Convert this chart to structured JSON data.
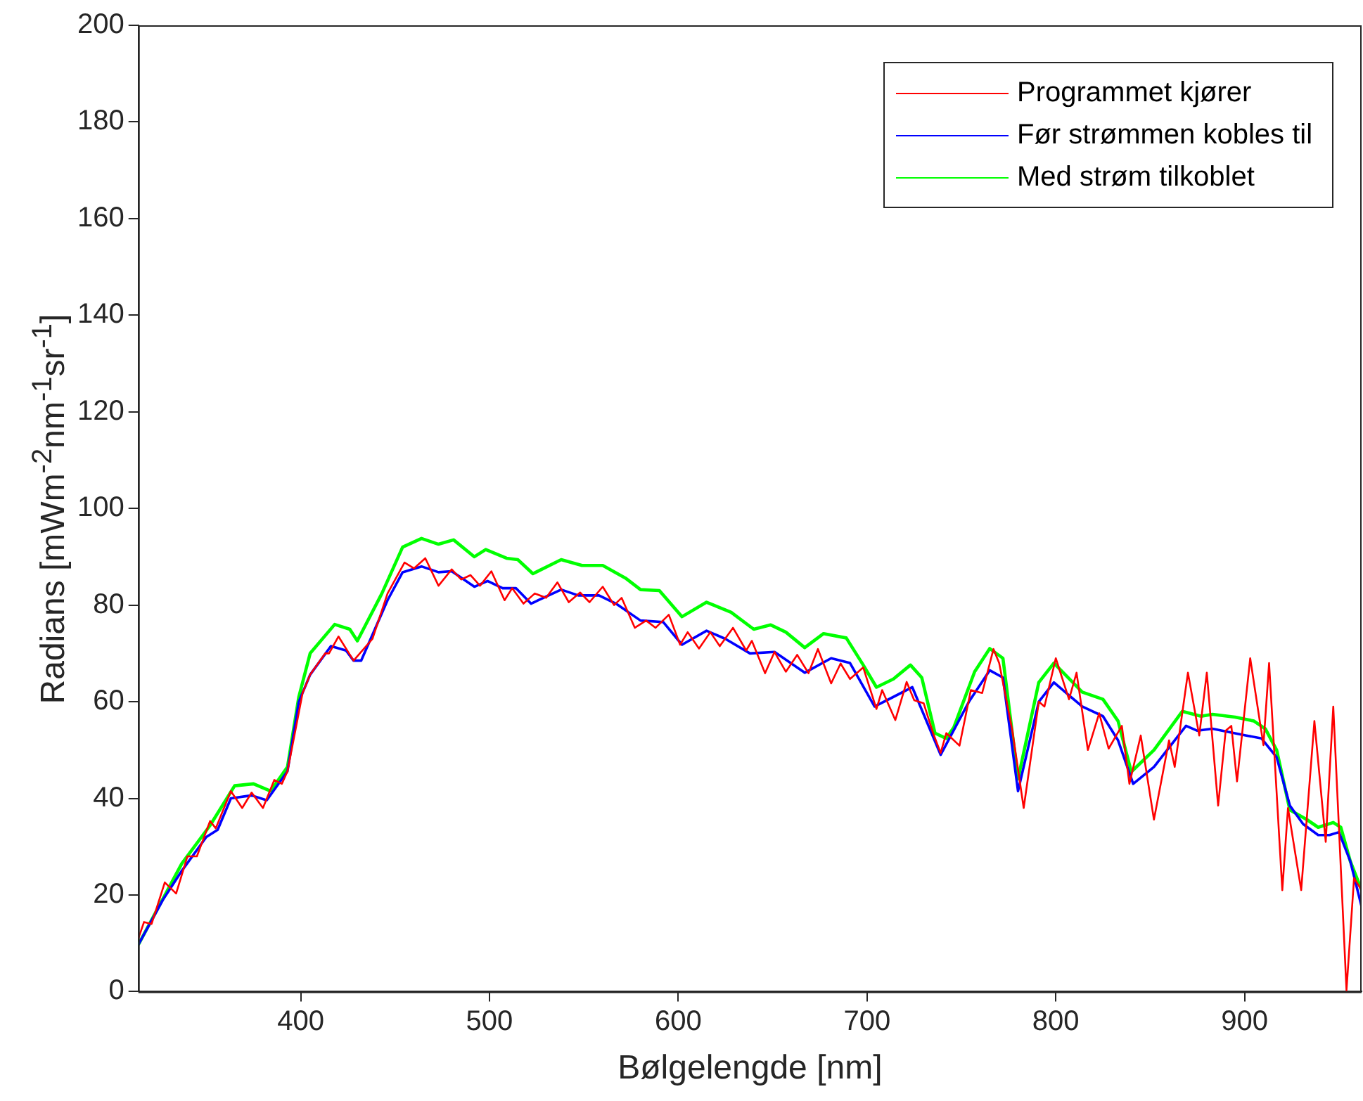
{
  "chart_data": {
    "type": "line",
    "xlabel": "Bølgelengde [nm]",
    "ylabel": "Radians [mWm$^{-2}$nm$^{-1}$sr$^{-1}$]",
    "xlim": [
      314,
      962
    ],
    "xticks": [
      400,
      500,
      600,
      700,
      800,
      900
    ],
    "ylim": [
      0,
      200
    ],
    "yticks": [
      0,
      20,
      40,
      60,
      80,
      100,
      120,
      140,
      160,
      180,
      200
    ],
    "grid": false,
    "legend": "top right",
    "marker": "none",
    "line_style": "solid",
    "series": [
      {
        "name": "Programmet kjører",
        "color": "#ff0000",
        "x": [
          314,
          317,
          321,
          328,
          334,
          340,
          345,
          352,
          355,
          363,
          369,
          374,
          380,
          386,
          390,
          393,
          401,
          405,
          413,
          415,
          420,
          428,
          438,
          446,
          455,
          460,
          466,
          473,
          480,
          485,
          490,
          495,
          501,
          508,
          512,
          518,
          524,
          530,
          536,
          542,
          548,
          553,
          560,
          566,
          570,
          577,
          583,
          588,
          595,
          601,
          605,
          611,
          617,
          622,
          629,
          636,
          639,
          646,
          651,
          657,
          663,
          669,
          674,
          681,
          686,
          691,
          698,
          705,
          708,
          715,
          721,
          725,
          730,
          735,
          739,
          742,
          749,
          755,
          761,
          767,
          770,
          777,
          783,
          791,
          794,
          800,
          807,
          811,
          817,
          823,
          828,
          835,
          839,
          845,
          852,
          860,
          863,
          870,
          876,
          880,
          886,
          890,
          893,
          896,
          903,
          910,
          913,
          920,
          923,
          930,
          937,
          943,
          947,
          954,
          958,
          962
        ],
        "values": [
          11,
          14.4,
          14,
          22.6,
          20.3,
          28,
          28,
          35.3,
          33.8,
          41.5,
          38,
          41.2,
          38,
          43.8,
          43,
          45.6,
          61.8,
          65.6,
          70,
          70,
          73.5,
          68.5,
          73,
          82.4,
          88.8,
          87.6,
          89.7,
          84,
          87.4,
          85.3,
          86.2,
          84,
          87,
          81,
          83.5,
          80.3,
          82.4,
          81.5,
          84.7,
          80.6,
          82.6,
          80.6,
          83.8,
          80,
          81.5,
          75.3,
          76.8,
          75.3,
          78,
          71.8,
          74.4,
          71,
          74.4,
          71.5,
          75.3,
          70.6,
          72.6,
          65.9,
          70.3,
          66.2,
          69.7,
          65.9,
          70.9,
          63.8,
          67.9,
          64.7,
          67.1,
          58.5,
          62.4,
          56.2,
          64.1,
          60.3,
          59.7,
          53.5,
          49.4,
          53.5,
          50.9,
          62.4,
          61.8,
          70.9,
          68,
          54,
          38,
          60,
          59,
          69,
          60.5,
          66,
          50,
          57.6,
          50.3,
          55,
          43,
          53,
          35.6,
          52,
          46.5,
          66,
          53,
          66,
          38.5,
          54,
          55,
          43.5,
          69,
          51,
          68,
          21,
          38,
          21,
          56,
          31,
          59,
          0.3,
          23.5,
          21
        ]
      },
      {
        "name": "Før strømmen kobles til",
        "color": "#0000ff",
        "x": [
          314,
          327,
          337,
          350,
          356,
          363,
          374,
          382,
          393,
          399,
          405,
          416,
          424,
          428,
          432,
          446,
          454,
          464,
          473,
          480,
          492,
          499,
          507,
          514,
          522,
          538,
          547,
          558,
          567,
          580,
          592,
          602,
          615,
          625,
          638,
          651,
          667,
          681,
          691,
          704,
          724,
          739,
          754,
          765,
          772,
          780,
          791,
          799,
          805,
          814,
          825,
          833,
          841,
          852,
          869,
          875,
          883,
          901,
          909,
          917,
          924,
          931,
          939,
          945,
          950,
          956,
          962
        ],
        "values": [
          9.7,
          19,
          25,
          32,
          33.5,
          40,
          40.6,
          39.6,
          45.6,
          60,
          65.6,
          71.5,
          70.6,
          68.5,
          68.5,
          81,
          86.8,
          88,
          86.8,
          87,
          83.8,
          85,
          83.5,
          83.5,
          80.3,
          83.2,
          82,
          82,
          80.3,
          76.8,
          76.5,
          71.8,
          74.7,
          73,
          70,
          70.3,
          66,
          69,
          68,
          59,
          63,
          49,
          60,
          66.5,
          65,
          41.5,
          60,
          64,
          62,
          59,
          57,
          52,
          43,
          46.5,
          55,
          54,
          54.4,
          53,
          52.4,
          48.5,
          38.5,
          34.7,
          32.4,
          32.4,
          33,
          27,
          17.6
        ]
      },
      {
        "name": "Med strøm tilkoblet",
        "color": "#00ff00",
        "x": [
          314,
          337,
          352,
          365,
          375,
          384,
          393,
          399,
          405,
          418,
          426,
          430,
          443,
          454,
          464,
          473,
          481,
          492,
          498,
          509,
          515,
          523,
          538,
          549,
          560,
          572,
          580,
          590,
          602,
          615,
          628,
          640,
          649,
          657,
          667,
          677,
          689,
          698,
          705,
          714,
          723,
          729,
          736,
          742,
          746,
          757,
          765,
          772,
          780,
          791,
          799,
          814,
          825,
          833,
          840,
          852,
          867,
          877,
          883,
          895,
          905,
          911,
          917,
          924,
          933,
          939,
          947,
          951,
          956,
          962
        ],
        "values": [
          9.7,
          26.5,
          34.4,
          42.6,
          43,
          41.5,
          46.5,
          61,
          70,
          76,
          75,
          72.6,
          82.4,
          92,
          93.8,
          92.6,
          93.5,
          90,
          91.5,
          89.7,
          89.4,
          86.5,
          89.4,
          88.2,
          88.2,
          85.6,
          83.2,
          83,
          77.6,
          80.6,
          78.5,
          75,
          75.9,
          74.4,
          71.2,
          74.1,
          73.2,
          67.6,
          63,
          64.7,
          67.6,
          65,
          53.5,
          52.4,
          54.7,
          66.2,
          71,
          69,
          44,
          64,
          68,
          62,
          60.5,
          56,
          45.5,
          50,
          58,
          57,
          57.4,
          56.8,
          56,
          54.4,
          50,
          37.6,
          35.6,
          34,
          35,
          34,
          27,
          21
        ]
      }
    ]
  }
}
